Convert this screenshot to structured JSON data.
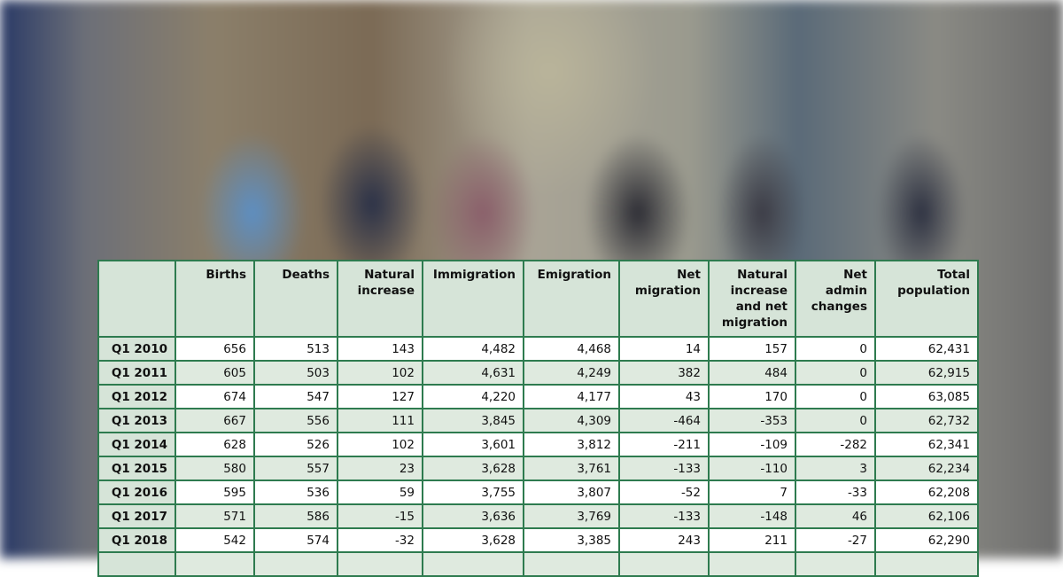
{
  "table": {
    "header": [
      "",
      "Births",
      "Deaths",
      "Natural increase",
      "Immigration",
      "Emigration",
      "Net migration",
      "Natural increase and net migration",
      "Net admin changes",
      "Total population"
    ],
    "rows": [
      [
        "Q1 2010",
        "656",
        "513",
        "143",
        "4,482",
        "4,468",
        "14",
        "157",
        "0",
        "62,431"
      ],
      [
        "Q1 2011",
        "605",
        "503",
        "102",
        "4,631",
        "4,249",
        "382",
        "484",
        "0",
        "62,915"
      ],
      [
        "Q1 2012",
        "674",
        "547",
        "127",
        "4,220",
        "4,177",
        "43",
        "170",
        "0",
        "63,085"
      ],
      [
        "Q1 2013",
        "667",
        "556",
        "111",
        "3,845",
        "4,309",
        "-464",
        "-353",
        "0",
        "62,732"
      ],
      [
        "Q1 2014",
        "628",
        "526",
        "102",
        "3,601",
        "3,812",
        "-211",
        "-109",
        "-282",
        "62,341"
      ],
      [
        "Q1 2015",
        "580",
        "557",
        "23",
        "3,628",
        "3,761",
        "-133",
        "-110",
        "3",
        "62,234"
      ],
      [
        "Q1 2016",
        "595",
        "536",
        "59",
        "3,755",
        "3,807",
        "-52",
        "7",
        "-33",
        "62,208"
      ],
      [
        "Q1 2017",
        "571",
        "586",
        "-15",
        "3,636",
        "3,769",
        "-133",
        "-148",
        "46",
        "62,106"
      ],
      [
        "Q1 2018",
        "542",
        "574",
        "-32",
        "3,628",
        "3,385",
        "243",
        "211",
        "-27",
        "62,290"
      ]
    ]
  }
}
